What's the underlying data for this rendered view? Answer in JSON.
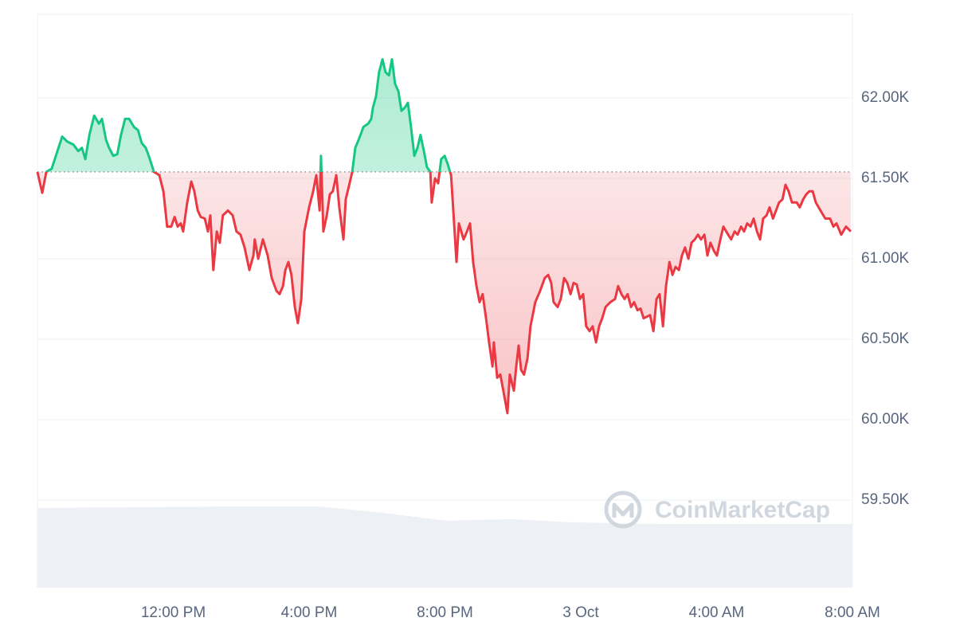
{
  "chart_data": {
    "type": "baseline-line",
    "watermark": "CoinMarketCap",
    "baseline": 61540,
    "up_color": "#16c784",
    "down_color": "#ea3943",
    "xlim": [
      0,
      24
    ],
    "xticks": [
      {
        "value": 4,
        "label": "12:00 PM"
      },
      {
        "value": 8,
        "label": "4:00 PM"
      },
      {
        "value": 12,
        "label": "8:00 PM"
      },
      {
        "value": 16,
        "label": "3 Oct"
      },
      {
        "value": 20,
        "label": "4:00 AM"
      },
      {
        "value": 24,
        "label": "8:00 AM"
      }
    ],
    "ylim": [
      58955,
      62520
    ],
    "yticks": [
      {
        "value": 59500,
        "label": "59.50K"
      },
      {
        "value": 60000,
        "label": "60.00K"
      },
      {
        "value": 60500,
        "label": "60.50K"
      },
      {
        "value": 61000,
        "label": "61.00K"
      },
      {
        "value": 61500,
        "label": "61.50K"
      },
      {
        "value": 62000,
        "label": "62.00K"
      }
    ],
    "grid": true,
    "x": [
      0,
      0.14,
      0.26,
      0.42,
      0.59,
      0.73,
      0.87,
      1.06,
      1.2,
      1.31,
      1.41,
      1.53,
      1.67,
      1.81,
      1.9,
      2.02,
      2.11,
      2.23,
      2.35,
      2.46,
      2.58,
      2.7,
      2.84,
      2.96,
      3.07,
      3.19,
      3.31,
      3.43,
      3.59,
      3.71,
      3.82,
      3.94,
      4.04,
      4.13,
      4.22,
      4.29,
      4.41,
      4.53,
      4.62,
      4.72,
      4.81,
      4.93,
      5.02,
      5.09,
      5.18,
      5.28,
      5.37,
      5.46,
      5.61,
      5.75,
      5.86,
      5.98,
      6.1,
      6.24,
      6.36,
      6.4,
      6.5,
      6.64,
      6.78,
      6.9,
      7.04,
      7.13,
      7.23,
      7.3,
      7.39,
      7.48,
      7.58,
      7.67,
      7.77,
      7.86,
      8,
      8.12,
      8.21,
      8.31,
      8.35,
      8.42,
      8.52,
      8.61,
      8.7,
      8.8,
      8.89,
      9.01,
      9.08,
      9.17,
      9.27,
      9.36,
      9.46,
      9.6,
      9.74,
      9.83,
      9.88,
      9.97,
      10.06,
      10.16,
      10.25,
      10.35,
      10.44,
      10.53,
      10.63,
      10.72,
      10.82,
      10.91,
      11,
      11.1,
      11.19,
      11.28,
      11.38,
      11.47,
      11.57,
      11.61,
      11.71,
      11.8,
      11.89,
      11.99,
      12.08,
      12.18,
      12.27,
      12.34,
      12.41,
      12.55,
      12.65,
      12.74,
      12.83,
      12.93,
      13.02,
      13.11,
      13.21,
      13.3,
      13.4,
      13.44,
      13.54,
      13.63,
      13.72,
      13.84,
      13.91,
      14.03,
      14.1,
      14.17,
      14.24,
      14.33,
      14.43,
      14.52,
      14.66,
      14.8,
      14.94,
      15.04,
      15.13,
      15.2,
      15.32,
      15.41,
      15.51,
      15.6,
      15.7,
      15.79,
      15.88,
      15.98,
      16.07,
      16.16,
      16.26,
      16.35,
      16.45,
      16.54,
      16.63,
      16.73,
      16.87,
      17.01,
      17.1,
      17.2,
      17.29,
      17.38,
      17.48,
      17.57,
      17.67,
      17.76,
      17.85,
      17.95,
      18.04,
      18.14,
      18.23,
      18.32,
      18.42,
      18.51,
      18.61,
      18.7,
      18.79,
      18.89,
      18.98,
      19.07,
      19.17,
      19.26,
      19.36,
      19.45,
      19.54,
      19.64,
      19.73,
      19.82,
      19.92,
      20.01,
      20.11,
      20.2,
      20.34,
      20.43,
      20.53,
      20.62,
      20.72,
      20.81,
      20.9,
      21,
      21.09,
      21.19,
      21.28,
      21.37,
      21.47,
      21.56,
      21.66,
      21.75,
      21.84,
      21.94,
      22.03,
      22.12,
      22.22,
      22.36,
      22.45,
      22.55,
      22.64,
      22.73,
      22.83,
      22.92,
      23.06,
      23.2,
      23.34,
      23.44,
      23.53,
      23.67,
      23.81,
      23.95
    ],
    "values": [
      61540,
      61410,
      61540,
      61560,
      61670,
      61760,
      61730,
      61710,
      61670,
      61690,
      61620,
      61770,
      61890,
      61840,
      61870,
      61740,
      61690,
      61640,
      61650,
      61770,
      61870,
      61870,
      61820,
      61800,
      61720,
      61690,
      61620,
      61540,
      61520,
      61420,
      61200,
      61200,
      61260,
      61200,
      61220,
      61170,
      61350,
      61480,
      61420,
      61300,
      61260,
      61250,
      61170,
      61270,
      60930,
      61170,
      61100,
      61270,
      61300,
      61270,
      61170,
      61150,
      61070,
      60930,
      61020,
      61120,
      61000,
      61120,
      61020,
      60880,
      60800,
      60780,
      60830,
      60930,
      60980,
      60900,
      60700,
      60600,
      60750,
      61170,
      61320,
      61420,
      61520,
      61300,
      61640,
      61170,
      61270,
      61400,
      61420,
      61520,
      61320,
      61120,
      61370,
      61450,
      61540,
      61690,
      61740,
      61820,
      61840,
      61870,
      61940,
      62010,
      62160,
      62240,
      62160,
      62140,
      62240,
      62090,
      62040,
      61920,
      61940,
      61970,
      61820,
      61640,
      61690,
      61770,
      61670,
      61570,
      61540,
      61350,
      61500,
      61470,
      61620,
      61640,
      61590,
      61520,
      61220,
      60980,
      61220,
      61120,
      61170,
      61220,
      60980,
      60830,
      60730,
      60780,
      60630,
      60480,
      60330,
      60480,
      60260,
      60280,
      60180,
      60040,
      60280,
      60180,
      60330,
      60460,
      60310,
      60280,
      60380,
      60580,
      60730,
      60800,
      60880,
      60900,
      60850,
      60730,
      60700,
      60750,
      60880,
      60850,
      60780,
      60850,
      60840,
      60750,
      60780,
      60580,
      60550,
      60580,
      60480,
      60580,
      60630,
      60700,
      60730,
      60750,
      60830,
      60780,
      60750,
      60780,
      60700,
      60730,
      60680,
      60690,
      60630,
      60640,
      60650,
      60550,
      60750,
      60780,
      60580,
      60830,
      60980,
      60900,
      60950,
      60930,
      61020,
      61070,
      61000,
      61100,
      61120,
      61150,
      61120,
      61150,
      61020,
      61100,
      61050,
      61020,
      61120,
      61200,
      61150,
      61120,
      61170,
      61150,
      61200,
      61170,
      61220,
      61200,
      61250,
      61170,
      61120,
      61250,
      61270,
      61320,
      61250,
      61300,
      61350,
      61370,
      61460,
      61420,
      61350,
      61350,
      61320,
      61370,
      61400,
      61420,
      61420,
      61350,
      61300,
      61250,
      61250,
      61200,
      61220,
      61150,
      61200,
      61170
    ]
  }
}
